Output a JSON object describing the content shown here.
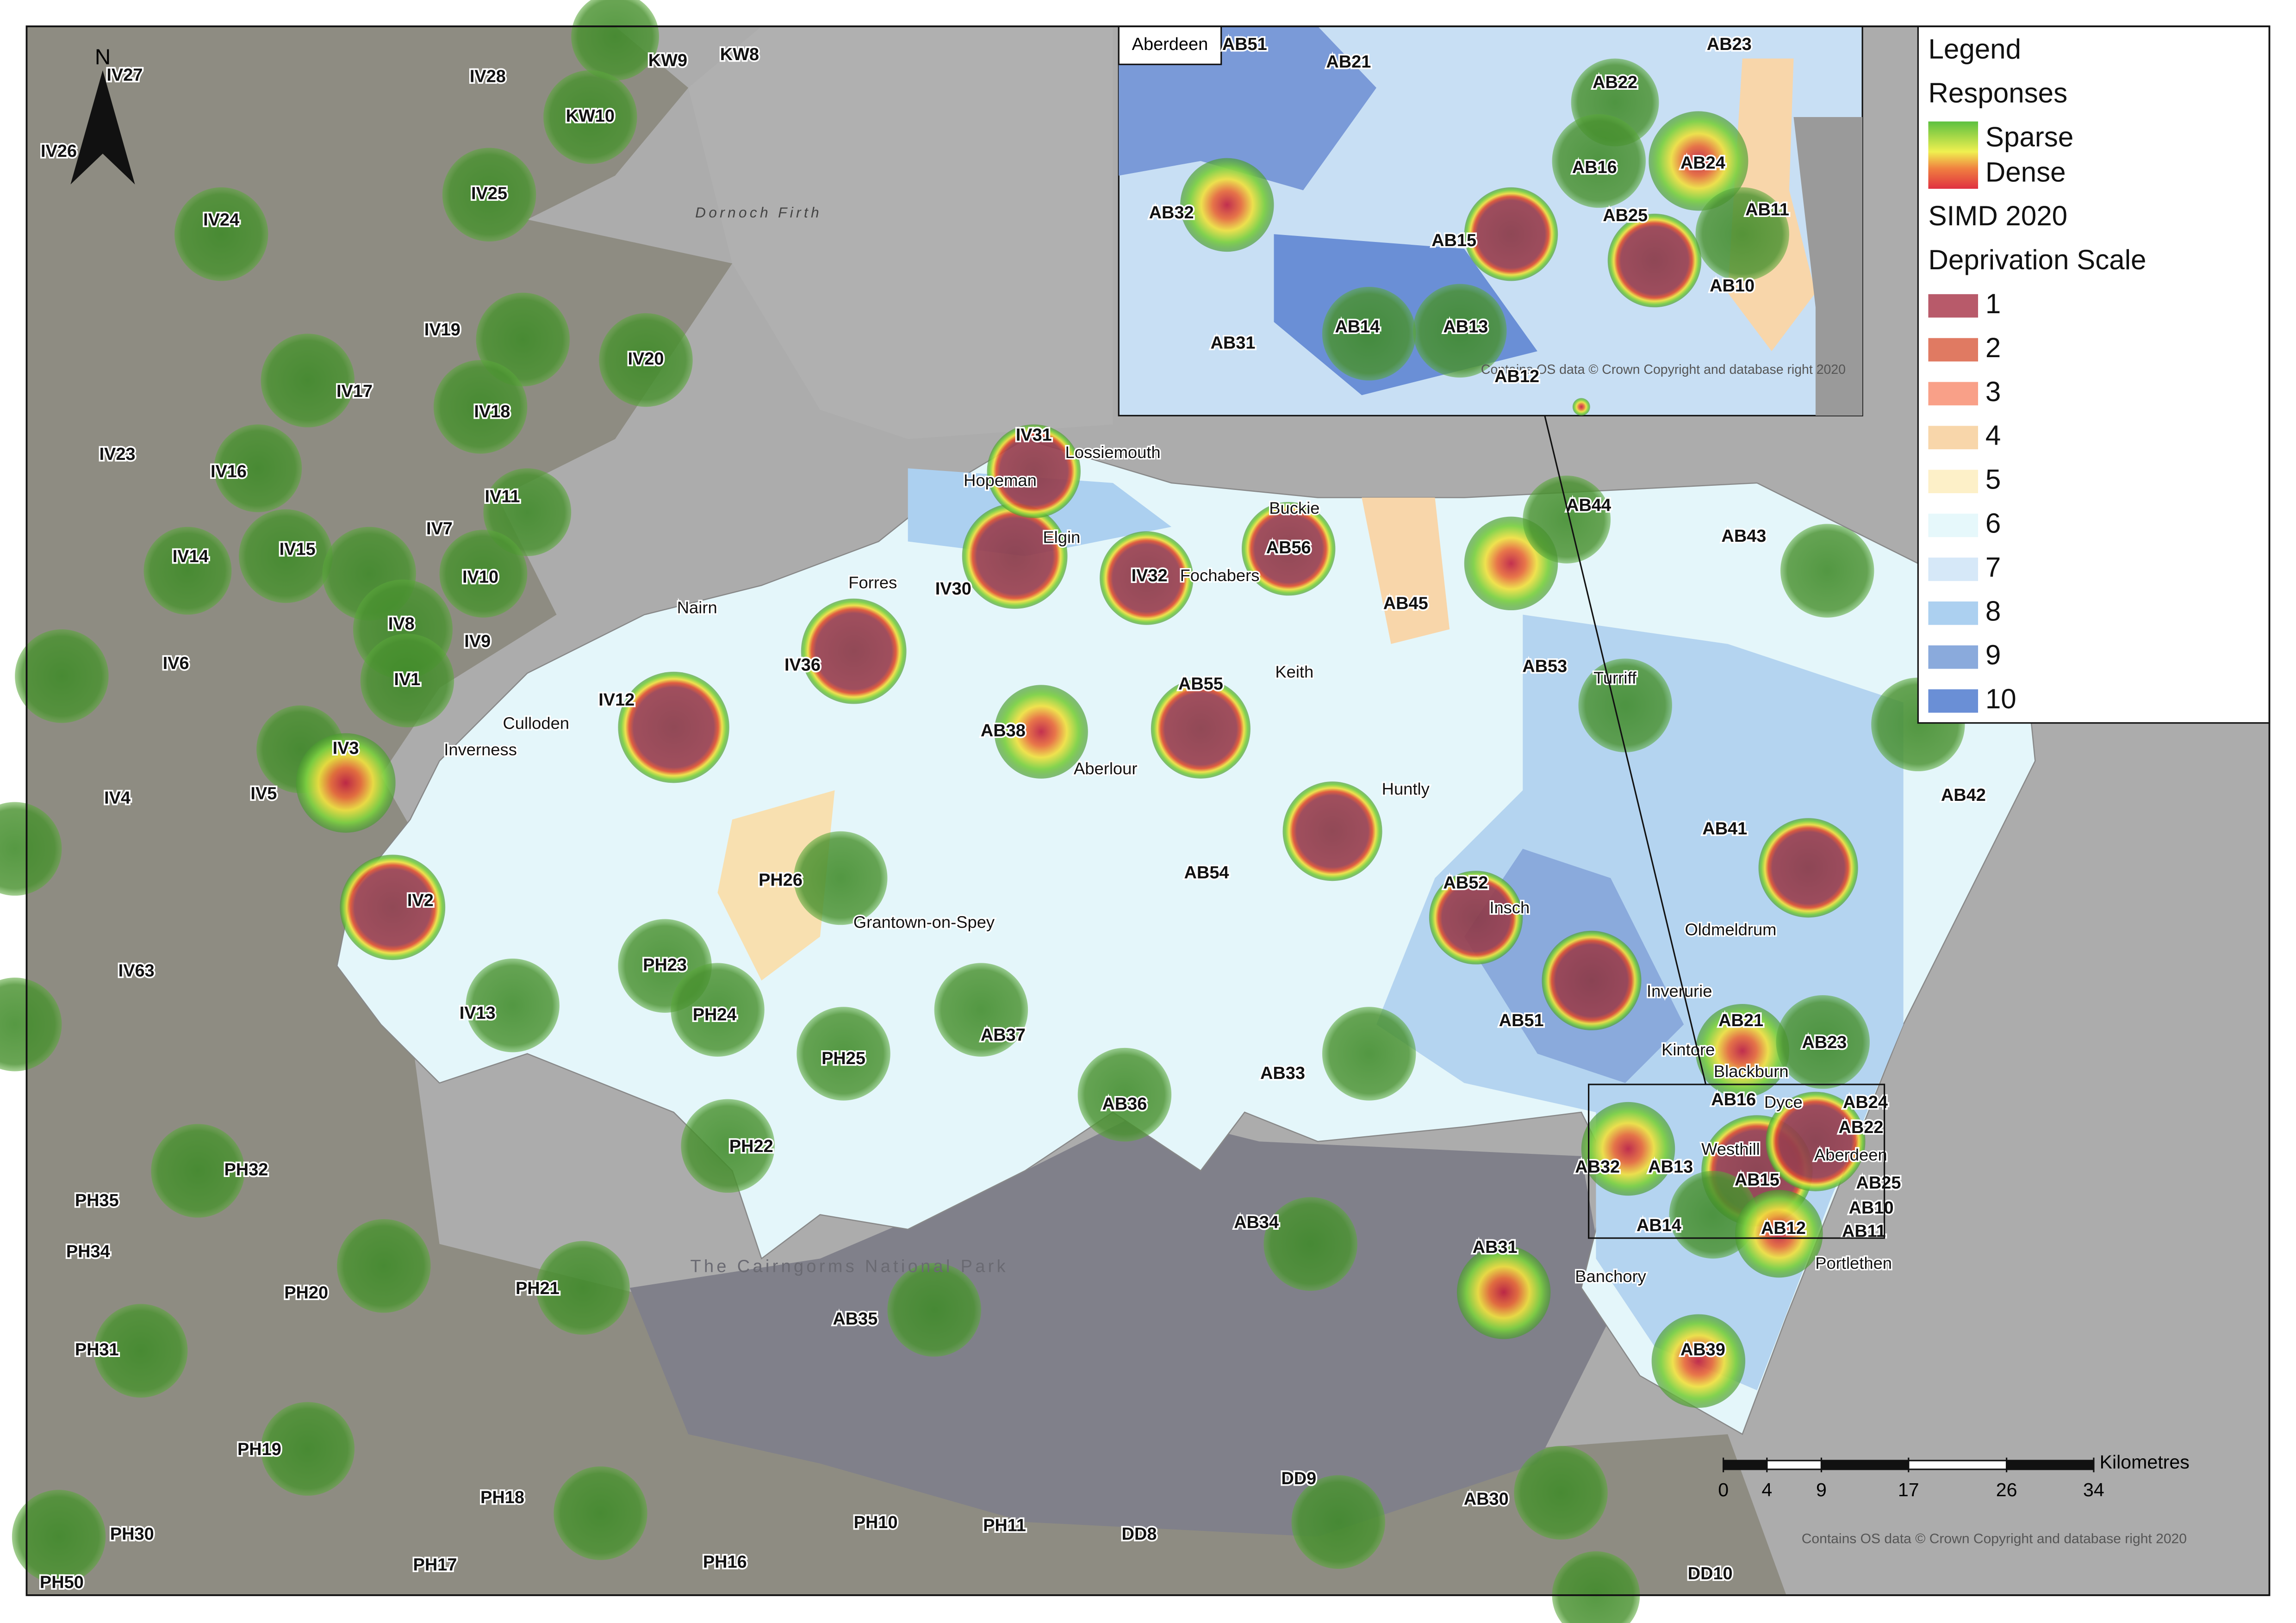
{
  "map": {
    "north_arrow": "N",
    "postcodes": [
      "IV27",
      "IV28",
      "KW9",
      "KW8",
      "IV26",
      "KW10",
      "IV25",
      "IV24",
      "IV19",
      "IV20",
      "IV17",
      "IV18",
      "IV23",
      "IV16",
      "IV11",
      "IV7",
      "IV14",
      "IV15",
      "IV10",
      "IV8",
      "IV9",
      "IV6",
      "IV1",
      "IV12",
      "IV36",
      "IV30",
      "IV31",
      "IV32",
      "AB56",
      "AB44",
      "AB43",
      "AB45",
      "AB53",
      "AB55",
      "AB38",
      "IV3",
      "IV5",
      "IV4",
      "AB42",
      "AB41",
      "AB54",
      "PH26",
      "AB52",
      "IV2",
      "IV63",
      "PH23",
      "PH24",
      "IV13",
      "AB51",
      "AB37",
      "PH25",
      "AB21",
      "AB23",
      "AB33",
      "AB36",
      "AB16",
      "AB24",
      "AB22",
      "PH22",
      "PH32",
      "AB32",
      "AB13",
      "AB15",
      "AB25",
      "AB10",
      "PH35",
      "AB14",
      "AB12",
      "AB11",
      "AB34",
      "PH34",
      "AB31",
      "PH20",
      "PH21",
      "AB35",
      "PH31",
      "AB39",
      "PH19",
      "DD9",
      "PH18",
      "AB30",
      "PH10",
      "PH11",
      "DD8",
      "PH30",
      "PH17",
      "PH16",
      "DD10",
      "PH50"
    ],
    "towns": [
      "Lossiemouth",
      "Hopeman",
      "Elgin",
      "Buckie",
      "Fochabers",
      "Forres",
      "Nairn",
      "Keith",
      "Turriff",
      "Culloden",
      "Inverness",
      "Aberlour",
      "Huntly",
      "Grantown-on-Spey",
      "Insch",
      "Oldmeldrum",
      "Inverurie",
      "Kintore",
      "Blackburn",
      "Dyce",
      "Westhill",
      "Aberdeen",
      "Banchory",
      "Portlethen"
    ],
    "features": [
      "Dornoch Firth",
      "The Cairngorms National Park"
    ],
    "copyright": "Contains OS data © Crown Copyright and database right 2020",
    "scale_bar": {
      "unit": "Kilometres",
      "ticks": [
        0,
        4,
        9,
        17,
        26,
        34
      ]
    }
  },
  "inset": {
    "title": "Aberdeen",
    "postcodes": [
      "AB51",
      "AB21",
      "AB23",
      "AB22",
      "AB16",
      "AB24",
      "AB32",
      "AB11",
      "AB25",
      "AB15",
      "AB10",
      "AB31",
      "AB14",
      "AB13",
      "AB12"
    ],
    "copyright": "Contains OS data © Crown Copyright and database right 2020"
  },
  "legend": {
    "title": "Legend",
    "responses": {
      "title": "Responses",
      "entries": [
        "Sparse",
        "Dense"
      ]
    },
    "simd": {
      "title": "SIMD 2020",
      "subtitle": "Deprivation Scale",
      "entries": [
        {
          "label": "1",
          "color": "#b85a6a"
        },
        {
          "label": "2",
          "color": "#e07a62"
        },
        {
          "label": "3",
          "color": "#f9a088"
        },
        {
          "label": "4",
          "color": "#f8d6aa"
        },
        {
          "label": "5",
          "color": "#fdf0c8"
        },
        {
          "label": "6",
          "color": "#e6f8fb"
        },
        {
          "label": "7",
          "color": "#d6e8f8"
        },
        {
          "label": "8",
          "color": "#acd0f0"
        },
        {
          "label": "9",
          "color": "#8aaadc"
        },
        {
          "label": "10",
          "color": "#6a8fd6"
        }
      ]
    }
  }
}
